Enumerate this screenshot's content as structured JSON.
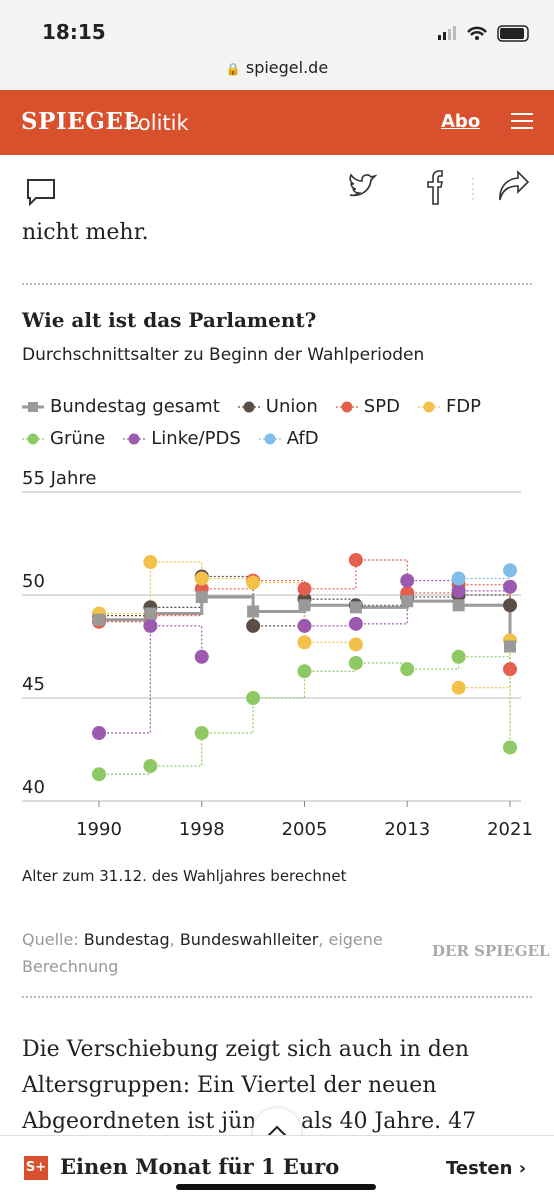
{
  "status_bar": {
    "time": "18:15",
    "url": "spiegel.de"
  },
  "header": {
    "logo": "SPIEGEL",
    "section": "Politik",
    "abo": "Abo"
  },
  "article": {
    "text_before": "nicht mehr.",
    "text_after": "Die Verschiebung zeigt sich auch in den Altersgruppen: Ein Viertel der neuen Abgeordneten ist jünger als 40 Jahre. 47"
  },
  "chart_data": {
    "type": "line",
    "step": true,
    "title": "Wie alt ist das Parlament?",
    "subtitle": "Durchschnittsalter zu Beginn der Wahlperioden",
    "note": "Alter zum 31.12. des Wahljahres berechnet",
    "categories": [
      "1990",
      null,
      "1998",
      null,
      "2005",
      null,
      "2013",
      null,
      "2021"
    ],
    "ylim": [
      40,
      55
    ],
    "yticks": [
      40,
      45,
      50,
      {
        "value": 55,
        "label": "55 Jahre"
      }
    ],
    "grid": true,
    "series": [
      {
        "name": "Bundestag gesamt",
        "color": "#9a9a9a",
        "marker": "square",
        "values": [
          48.8,
          49.1,
          49.9,
          49.2,
          49.5,
          49.4,
          49.7,
          49.5,
          47.5
        ]
      },
      {
        "name": "Union",
        "color": "#5b4e47",
        "marker": "circle",
        "values": [
          49.0,
          49.4,
          50.9,
          48.5,
          49.8,
          49.5,
          49.9,
          50.0,
          49.5
        ]
      },
      {
        "name": "SPD",
        "color": "#e3604e",
        "marker": "circle",
        "values": [
          48.7,
          49.0,
          50.3,
          50.7,
          50.3,
          51.7,
          50.1,
          50.5,
          46.4
        ]
      },
      {
        "name": "FDP",
        "color": "#f1c14a",
        "marker": "circle",
        "values": [
          49.1,
          51.6,
          50.8,
          50.6,
          47.7,
          47.6,
          null,
          45.5,
          47.8
        ]
      },
      {
        "name": "Grüne",
        "color": "#8ec963",
        "marker": "circle",
        "values": [
          41.3,
          41.7,
          43.3,
          45.0,
          46.3,
          46.7,
          46.4,
          47.0,
          42.6
        ]
      },
      {
        "name": "Linke/PDS",
        "color": "#9b59b0",
        "marker": "circle",
        "values": [
          43.3,
          48.5,
          47.0,
          null,
          48.5,
          48.6,
          50.7,
          50.2,
          50.4
        ]
      },
      {
        "name": "AfD",
        "color": "#80bde9",
        "marker": "circle",
        "values": [
          null,
          null,
          null,
          null,
          null,
          null,
          null,
          50.8,
          51.2
        ]
      }
    ]
  },
  "source": {
    "prefix": "Quelle:",
    "link1": "Bundestag",
    "sep": ",",
    "link2": "Bundeswahlleiter",
    "suffix": ", eigene Berechnung",
    "brand": "DER SPIEGEL"
  },
  "banner": {
    "badge": "S+",
    "text": "Einen Monat für 1 Euro",
    "action": "Testen"
  }
}
